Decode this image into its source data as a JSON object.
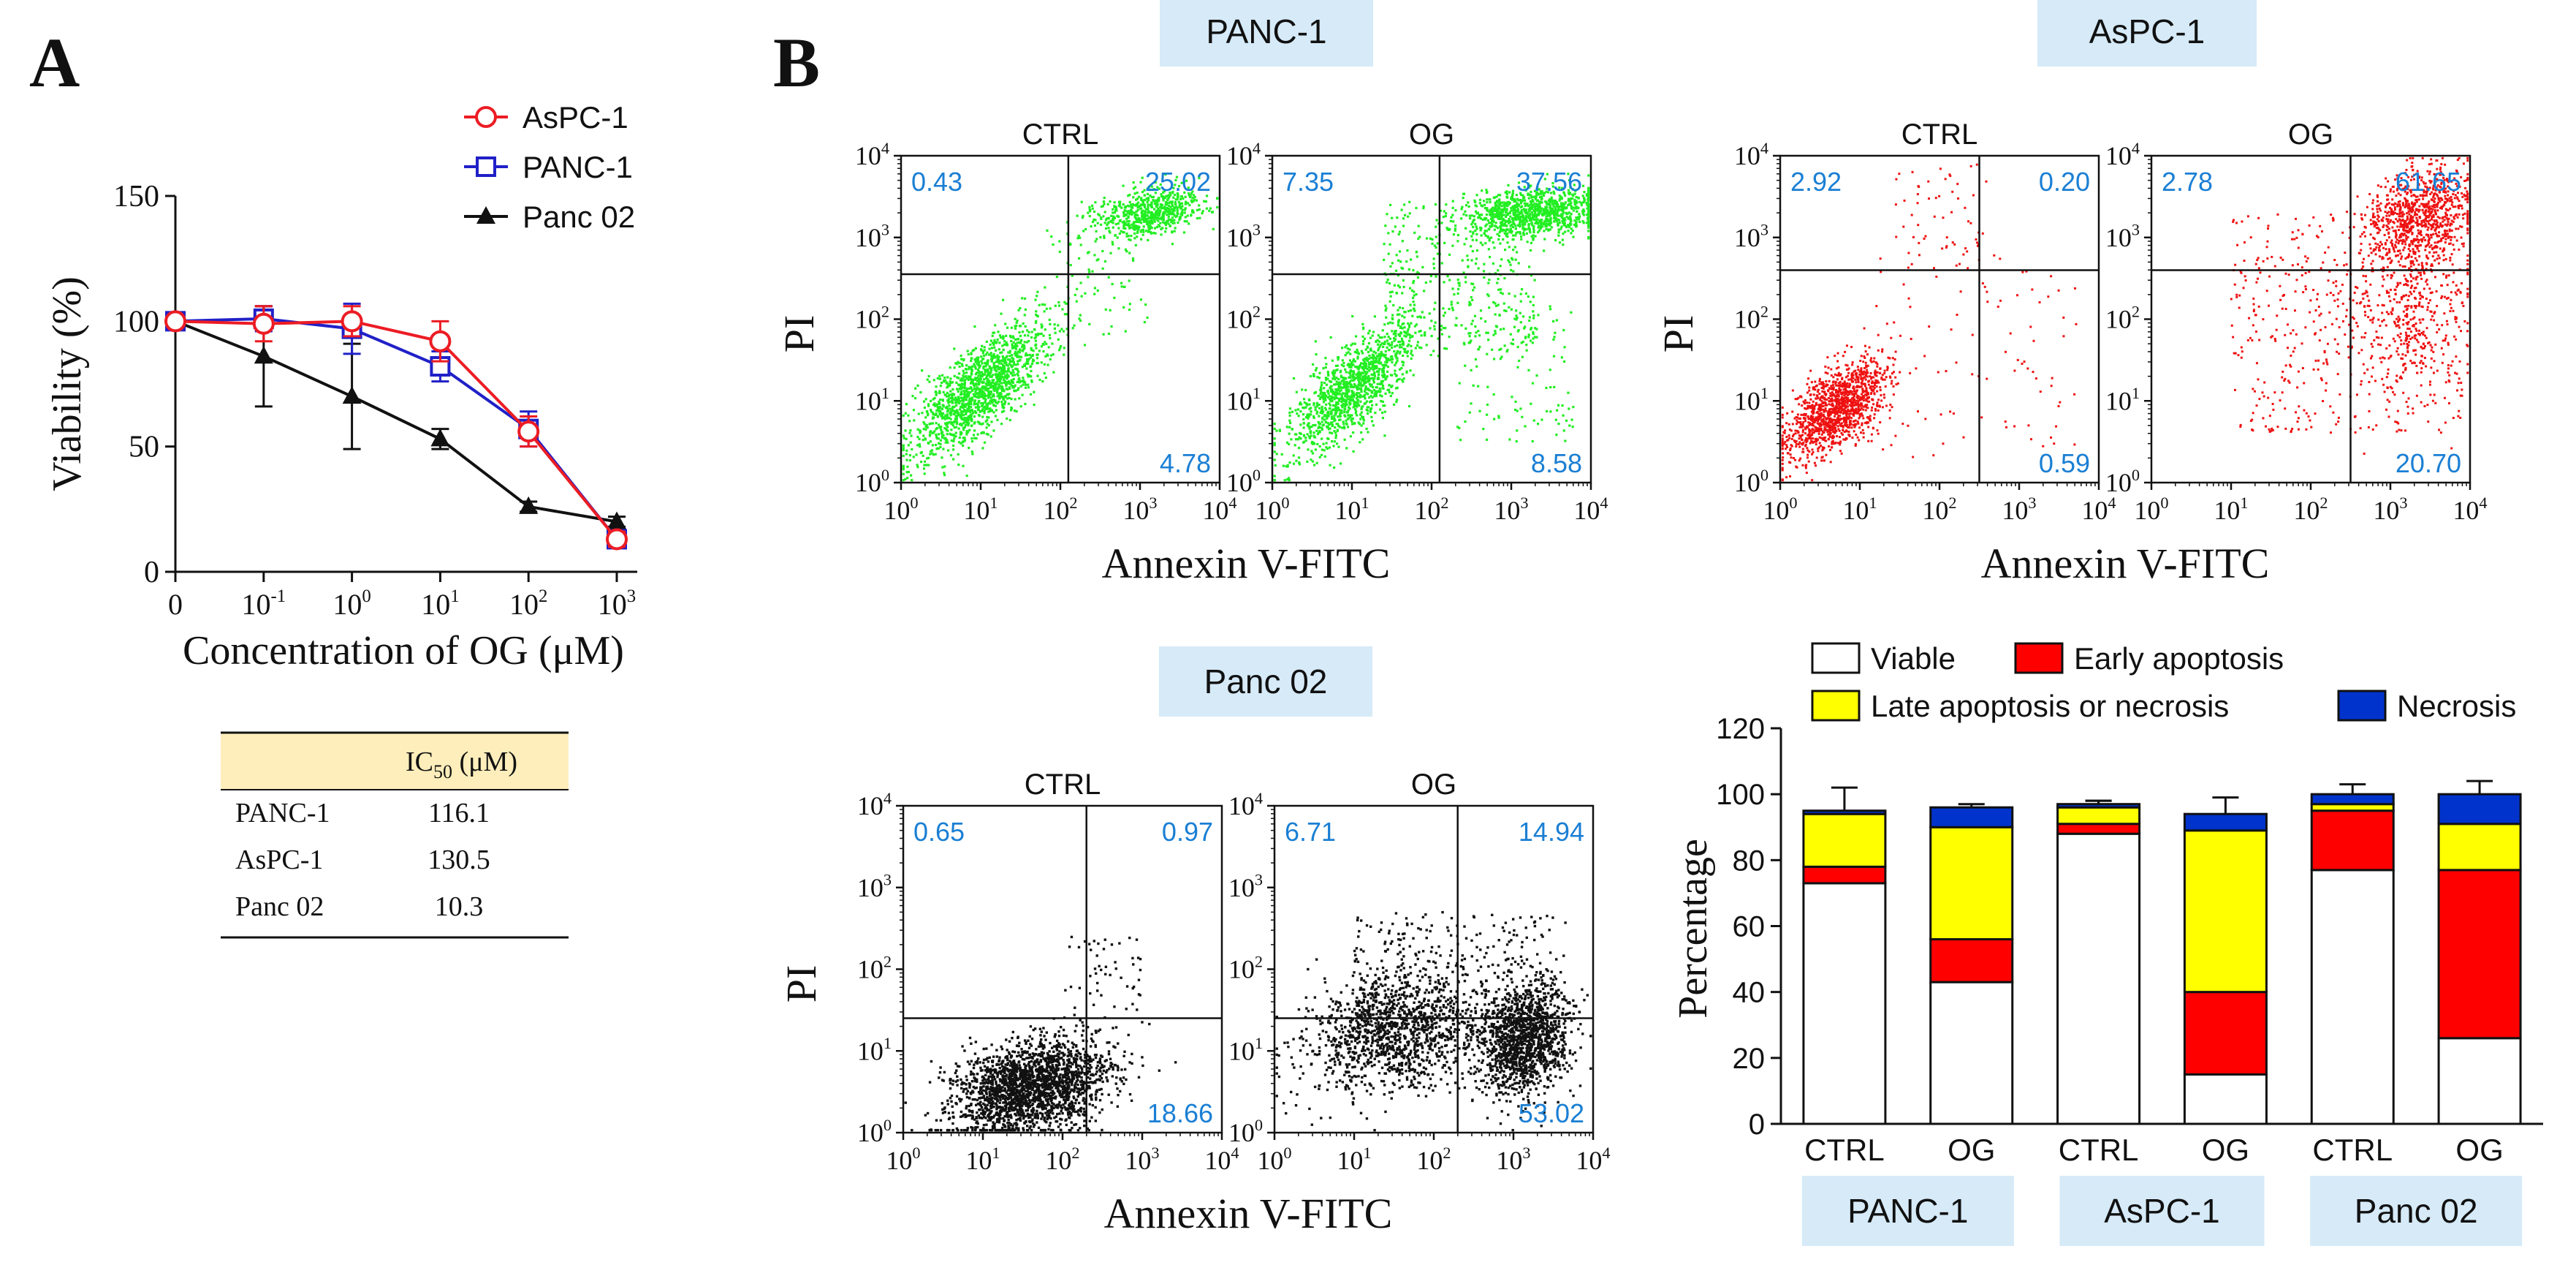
{
  "panel_labels": {
    "a": "A",
    "b": "B"
  },
  "colors": {
    "red": "#ec1c24",
    "blue": "#2020c8",
    "black": "#111111",
    "green": "#22ee22",
    "quad_label": "#1a7fd4",
    "cell_box": "#d6eaf8",
    "table_header": "#fdeebb",
    "bar_yellow": "#ffff00",
    "bar_red": "#ff0000",
    "bar_blue": "#0033cc",
    "bar_white": "#ffffff"
  },
  "chart_data": [
    {
      "id": "viability",
      "type": "line",
      "ylabel": "Viability (%)",
      "xlabel": "Concentration of OG (μM)",
      "x_ticks": [
        {
          "base": "0",
          "exp": ""
        },
        {
          "base": "10",
          "exp": "-1"
        },
        {
          "base": "10",
          "exp": "0"
        },
        {
          "base": "10",
          "exp": "1"
        },
        {
          "base": "10",
          "exp": "2"
        },
        {
          "base": "10",
          "exp": "3"
        }
      ],
      "x_scale": "categorical positions 0..5",
      "ylim": [
        0,
        150
      ],
      "y_ticks": [
        0,
        50,
        100,
        150
      ],
      "series": [
        {
          "name": "AsPC-1",
          "marker": "open-circle",
          "color": "#ec1c24",
          "x": [
            0,
            1,
            2,
            3,
            4,
            5
          ],
          "y": [
            100,
            99,
            100,
            92,
            56,
            13
          ],
          "err": [
            0,
            7,
            6,
            8,
            6,
            3
          ]
        },
        {
          "name": "PANC-1",
          "marker": "open-square",
          "color": "#2020c8",
          "x": [
            0,
            1,
            2,
            3,
            4,
            5
          ],
          "y": [
            100,
            101,
            97,
            82,
            57,
            13
          ],
          "err": [
            0,
            5,
            10,
            6,
            7,
            3
          ]
        },
        {
          "name": "Panc 02",
          "marker": "filled-triangle",
          "color": "#111111",
          "x": [
            0,
            1,
            2,
            3,
            4,
            5
          ],
          "y": [
            100,
            86,
            70,
            53,
            26,
            20
          ],
          "err": [
            0,
            20,
            21,
            4,
            2,
            2
          ]
        }
      ]
    },
    {
      "id": "flow_panc1",
      "type": "scatter",
      "cell_line": "PANC-1",
      "xlabel": "Annexin V-FITC",
      "ylabel": "PI",
      "axis_range_log10": [
        0,
        4
      ],
      "point_color": "#22ee22",
      "plots": [
        {
          "condition": "CTRL",
          "gate": [
            2.1,
            2.55
          ],
          "quadrants": {
            "ul": "0.43",
            "ur": "25.02",
            "lr": "4.78"
          }
        },
        {
          "condition": "OG",
          "gate": [
            2.1,
            2.55
          ],
          "quadrants": {
            "ul": "7.35",
            "ur": "37.56",
            "lr": "8.58"
          }
        }
      ]
    },
    {
      "id": "flow_aspc1",
      "type": "scatter",
      "cell_line": "AsPC-1",
      "xlabel": "Annexin V-FITC",
      "ylabel": "PI",
      "axis_range_log10": [
        0,
        4
      ],
      "point_color": "#ee1111",
      "plots": [
        {
          "condition": "CTRL",
          "gate": [
            2.5,
            2.6
          ],
          "quadrants": {
            "ul": "2.92",
            "ur": "0.20",
            "lr": "0.59"
          }
        },
        {
          "condition": "OG",
          "gate": [
            2.5,
            2.6
          ],
          "quadrants": {
            "ul": "2.78",
            "ur": "61.65",
            "lr": "20.70"
          }
        }
      ]
    },
    {
      "id": "flow_panc02",
      "type": "scatter",
      "cell_line": "Panc 02",
      "xlabel": "Annexin V-FITC",
      "ylabel": "PI",
      "axis_range_log10": [
        0,
        4
      ],
      "point_color": "#111111",
      "plots": [
        {
          "condition": "CTRL",
          "gate": [
            2.3,
            1.4
          ],
          "quadrants": {
            "ul": "0.65",
            "ur": "0.97",
            "lr": "18.66"
          }
        },
        {
          "condition": "OG",
          "gate": [
            2.3,
            1.4
          ],
          "quadrants": {
            "ul": "6.71",
            "ur": "14.94",
            "lr": "53.02"
          }
        }
      ]
    },
    {
      "id": "apoptosis_bars",
      "type": "bar",
      "stacked": true,
      "ylabel": "Percentage",
      "ylim": [
        0,
        120
      ],
      "y_ticks": [
        0,
        20,
        40,
        60,
        80,
        100,
        120
      ],
      "categories": [
        "CTRL",
        "OG",
        "CTRL",
        "OG",
        "CTRL",
        "OG"
      ],
      "groups": [
        "PANC-1",
        "AsPC-1",
        "Panc 02"
      ],
      "legend": [
        "Viable",
        "Early apoptosis",
        "Late apoptosis or necrosis",
        "Necrosis"
      ],
      "series": [
        {
          "name": "Viable",
          "color": "#ffffff",
          "values": [
            73,
            43,
            88,
            15,
            77,
            26
          ],
          "err": [
            0,
            5,
            0,
            3,
            5,
            1
          ]
        },
        {
          "name": "Early apoptosis",
          "color": "#ff0000",
          "values": [
            5,
            13,
            3,
            25,
            18,
            51
          ],
          "err": [
            2,
            9,
            2,
            5,
            0,
            4
          ]
        },
        {
          "name": "Late apoptosis or necrosis",
          "color": "#ffff00",
          "values": [
            16,
            34,
            5,
            49,
            2,
            14
          ],
          "err": [
            0,
            0,
            2,
            0,
            0,
            0
          ]
        },
        {
          "name": "Necrosis",
          "color": "#0033cc",
          "values": [
            1,
            6,
            1,
            5,
            3,
            9
          ],
          "err": [
            7,
            1,
            1,
            5,
            3,
            4
          ]
        }
      ]
    }
  ],
  "ic50_table": {
    "header": [
      "",
      "IC50 (μM)"
    ],
    "header_parts": {
      "prefix": "IC",
      "sub": "50",
      "suffix": " (μM)"
    },
    "rows": [
      {
        "cell": "PANC-1",
        "value": "116.1"
      },
      {
        "cell": "AsPC-1",
        "value": "130.5"
      },
      {
        "cell": "Panc 02",
        "value": "10.3"
      }
    ]
  }
}
